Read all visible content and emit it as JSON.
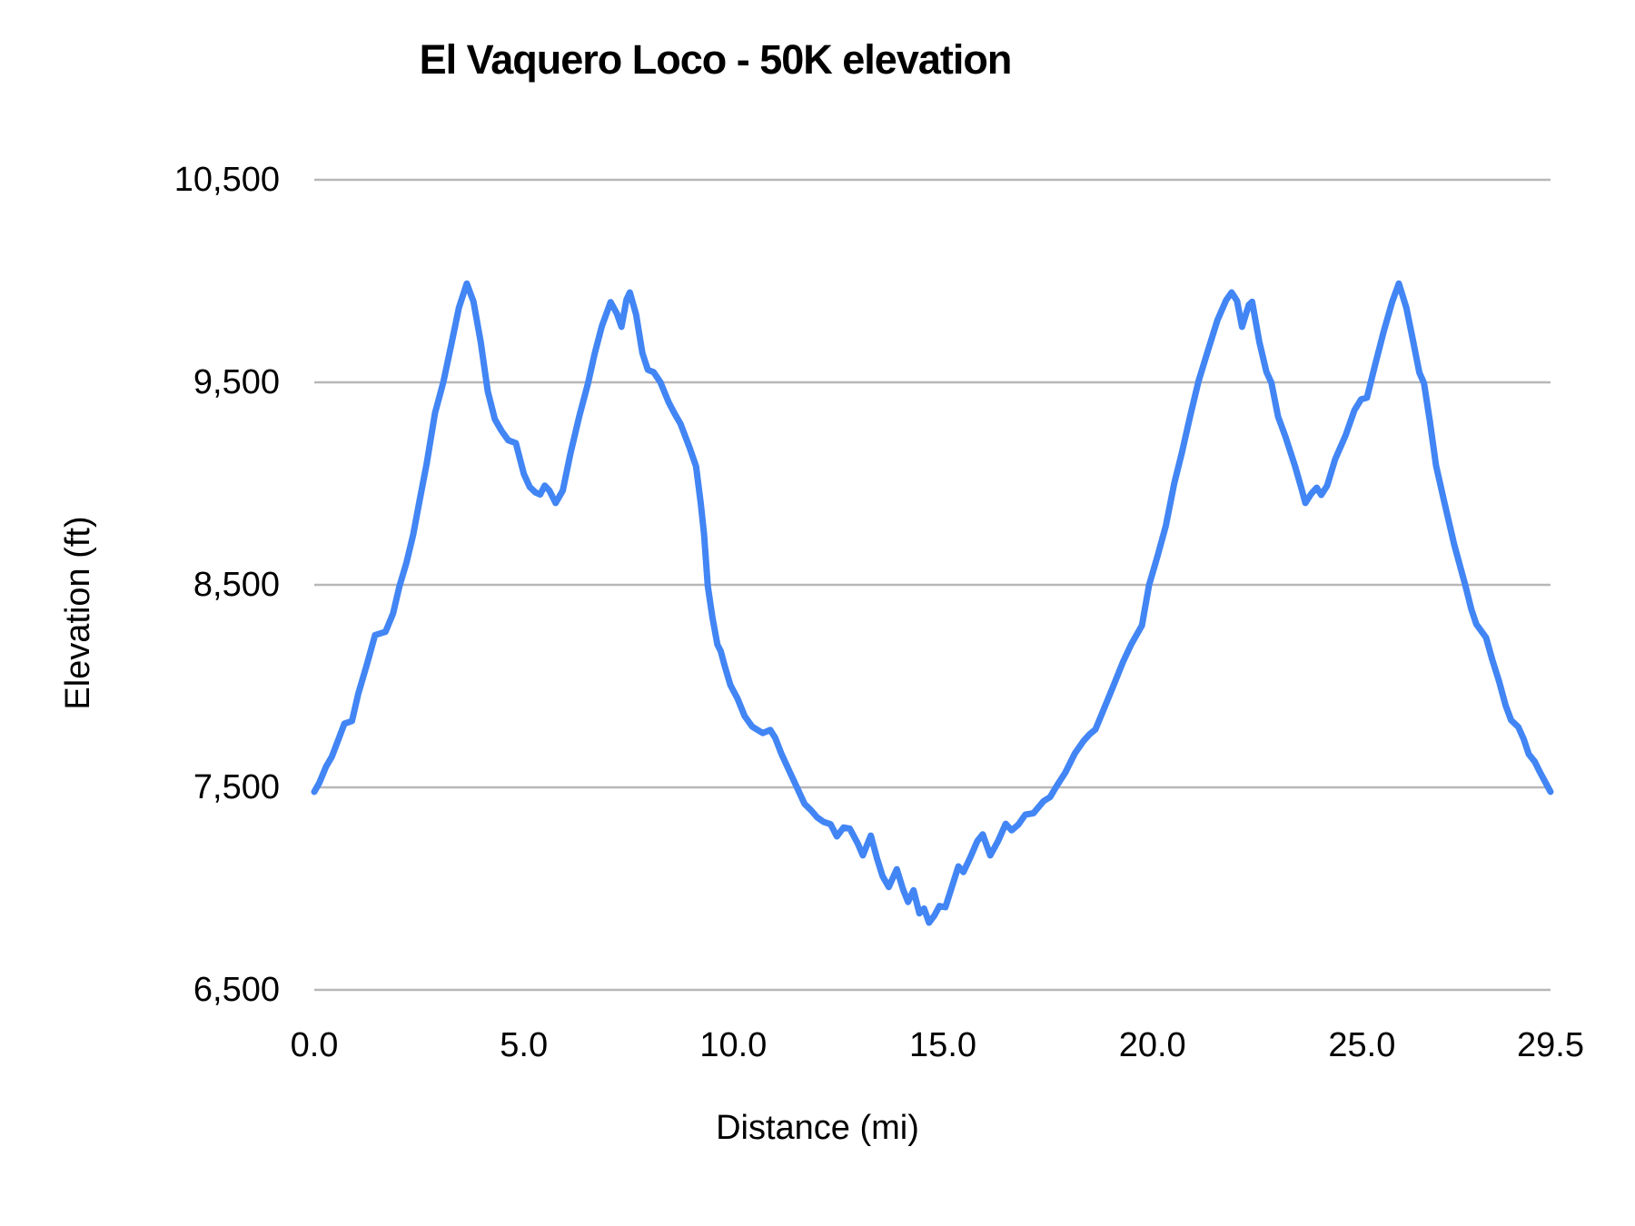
{
  "page": {
    "background": "#ffffff"
  },
  "chart_data": {
    "type": "line",
    "title": "El Vaquero Loco - 50K elevation",
    "xlabel": "Distance (mi)",
    "ylabel": "Elevation (ft)",
    "xlim": [
      0,
      29.5
    ],
    "ylim": [
      6500,
      10500
    ],
    "grid": "horizontal-only",
    "grid_color": "#b7b7b7",
    "legend": "none",
    "background": "#ffffff",
    "x_ticks": [
      {
        "v": 0,
        "label": "0.0"
      },
      {
        "v": 5,
        "label": "5.0"
      },
      {
        "v": 10,
        "label": "10.0"
      },
      {
        "v": 15,
        "label": "15.0"
      },
      {
        "v": 20,
        "label": "20.0"
      },
      {
        "v": 25,
        "label": "25.0"
      },
      {
        "v": 29.5,
        "label": "29.5"
      }
    ],
    "y_ticks": [
      {
        "v": 10500,
        "label": "10,500"
      },
      {
        "v": 9500,
        "label": "9,500"
      },
      {
        "v": 8500,
        "label": "8,500"
      },
      {
        "v": 7500,
        "label": "7,500"
      },
      {
        "v": 6500,
        "label": "6,500"
      }
    ],
    "series": [
      {
        "name": "elevation",
        "color": "#4285f4",
        "stroke_width": 7,
        "points": [
          [
            0.0,
            7478
          ],
          [
            0.12,
            7522
          ],
          [
            0.28,
            7602
          ],
          [
            0.42,
            7652
          ],
          [
            0.56,
            7728
          ],
          [
            0.72,
            7815
          ],
          [
            0.9,
            7828
          ],
          [
            1.05,
            7962
          ],
          [
            1.26,
            8110
          ],
          [
            1.45,
            8252
          ],
          [
            1.7,
            8268
          ],
          [
            1.88,
            8358
          ],
          [
            2.03,
            8492
          ],
          [
            2.2,
            8610
          ],
          [
            2.36,
            8748
          ],
          [
            2.52,
            8925
          ],
          [
            2.68,
            9095
          ],
          [
            2.88,
            9348
          ],
          [
            3.08,
            9502
          ],
          [
            3.27,
            9688
          ],
          [
            3.45,
            9868
          ],
          [
            3.64,
            9988
          ],
          [
            3.8,
            9898
          ],
          [
            3.97,
            9700
          ],
          [
            4.14,
            9455
          ],
          [
            4.31,
            9318
          ],
          [
            4.47,
            9260
          ],
          [
            4.63,
            9214
          ],
          [
            4.81,
            9200
          ],
          [
            5.0,
            9048
          ],
          [
            5.14,
            8984
          ],
          [
            5.28,
            8956
          ],
          [
            5.39,
            8946
          ],
          [
            5.5,
            8990
          ],
          [
            5.61,
            8966
          ],
          [
            5.76,
            8904
          ],
          [
            5.93,
            8966
          ],
          [
            6.11,
            9146
          ],
          [
            6.32,
            9330
          ],
          [
            6.53,
            9494
          ],
          [
            6.69,
            9640
          ],
          [
            6.86,
            9776
          ],
          [
            7.07,
            9896
          ],
          [
            7.22,
            9840
          ],
          [
            7.33,
            9774
          ],
          [
            7.45,
            9908
          ],
          [
            7.53,
            9944
          ],
          [
            7.68,
            9835
          ],
          [
            7.83,
            9645
          ],
          [
            7.96,
            9562
          ],
          [
            8.1,
            9550
          ],
          [
            8.26,
            9500
          ],
          [
            8.46,
            9400
          ],
          [
            8.6,
            9345
          ],
          [
            8.74,
            9295
          ],
          [
            8.96,
            9175
          ],
          [
            9.11,
            9085
          ],
          [
            9.22,
            8905
          ],
          [
            9.3,
            8750
          ],
          [
            9.39,
            8495
          ],
          [
            9.5,
            8340
          ],
          [
            9.62,
            8205
          ],
          [
            9.7,
            8172
          ],
          [
            9.8,
            8095
          ],
          [
            9.93,
            8005
          ],
          [
            10.1,
            7938
          ],
          [
            10.27,
            7852
          ],
          [
            10.45,
            7800
          ],
          [
            10.7,
            7768
          ],
          [
            10.88,
            7784
          ],
          [
            11.0,
            7744
          ],
          [
            11.15,
            7664
          ],
          [
            11.35,
            7575
          ],
          [
            11.52,
            7498
          ],
          [
            11.7,
            7418
          ],
          [
            11.85,
            7388
          ],
          [
            12.0,
            7352
          ],
          [
            12.15,
            7330
          ],
          [
            12.32,
            7318
          ],
          [
            12.47,
            7258
          ],
          [
            12.63,
            7302
          ],
          [
            12.78,
            7296
          ],
          [
            12.97,
            7222
          ],
          [
            13.09,
            7164
          ],
          [
            13.28,
            7262
          ],
          [
            13.43,
            7148
          ],
          [
            13.56,
            7062
          ],
          [
            13.71,
            7008
          ],
          [
            13.9,
            7096
          ],
          [
            14.05,
            6996
          ],
          [
            14.17,
            6934
          ],
          [
            14.3,
            6992
          ],
          [
            14.44,
            6878
          ],
          [
            14.55,
            6902
          ],
          [
            14.67,
            6832
          ],
          [
            14.8,
            6868
          ],
          [
            14.92,
            6914
          ],
          [
            15.06,
            6908
          ],
          [
            15.22,
            7012
          ],
          [
            15.37,
            7110
          ],
          [
            15.49,
            7082
          ],
          [
            15.65,
            7152
          ],
          [
            15.82,
            7234
          ],
          [
            15.95,
            7268
          ],
          [
            16.13,
            7164
          ],
          [
            16.32,
            7236
          ],
          [
            16.5,
            7320
          ],
          [
            16.64,
            7288
          ],
          [
            16.8,
            7316
          ],
          [
            16.97,
            7366
          ],
          [
            17.16,
            7372
          ],
          [
            17.4,
            7432
          ],
          [
            17.56,
            7452
          ],
          [
            17.7,
            7502
          ],
          [
            17.92,
            7572
          ],
          [
            18.15,
            7668
          ],
          [
            18.36,
            7730
          ],
          [
            18.5,
            7762
          ],
          [
            18.64,
            7786
          ],
          [
            18.86,
            7896
          ],
          [
            19.07,
            8002
          ],
          [
            19.3,
            8120
          ],
          [
            19.5,
            8208
          ],
          [
            19.75,
            8300
          ],
          [
            19.92,
            8498
          ],
          [
            20.12,
            8640
          ],
          [
            20.32,
            8792
          ],
          [
            20.52,
            9000
          ],
          [
            20.7,
            9150
          ],
          [
            20.9,
            9332
          ],
          [
            21.1,
            9506
          ],
          [
            21.31,
            9646
          ],
          [
            21.55,
            9806
          ],
          [
            21.76,
            9906
          ],
          [
            21.89,
            9944
          ],
          [
            22.02,
            9902
          ],
          [
            22.14,
            9774
          ],
          [
            22.3,
            9882
          ],
          [
            22.38,
            9898
          ],
          [
            22.55,
            9700
          ],
          [
            22.72,
            9552
          ],
          [
            22.84,
            9498
          ],
          [
            23.0,
            9330
          ],
          [
            23.17,
            9234
          ],
          [
            23.4,
            9088
          ],
          [
            23.56,
            8972
          ],
          [
            23.65,
            8904
          ],
          [
            23.79,
            8950
          ],
          [
            23.92,
            8980
          ],
          [
            24.03,
            8944
          ],
          [
            24.17,
            8990
          ],
          [
            24.36,
            9120
          ],
          [
            24.61,
            9238
          ],
          [
            24.82,
            9362
          ],
          [
            24.98,
            9416
          ],
          [
            25.12,
            9424
          ],
          [
            25.32,
            9592
          ],
          [
            25.52,
            9752
          ],
          [
            25.72,
            9896
          ],
          [
            25.88,
            9988
          ],
          [
            26.06,
            9868
          ],
          [
            26.22,
            9704
          ],
          [
            26.37,
            9548
          ],
          [
            26.48,
            9496
          ],
          [
            26.62,
            9310
          ],
          [
            26.77,
            9088
          ],
          [
            26.97,
            8904
          ],
          [
            27.2,
            8700
          ],
          [
            27.47,
            8496
          ],
          [
            27.61,
            8380
          ],
          [
            27.73,
            8306
          ],
          [
            27.96,
            8240
          ],
          [
            28.11,
            8130
          ],
          [
            28.27,
            8024
          ],
          [
            28.43,
            7904
          ],
          [
            28.56,
            7832
          ],
          [
            28.73,
            7798
          ],
          [
            28.86,
            7738
          ],
          [
            28.98,
            7664
          ],
          [
            29.12,
            7628
          ],
          [
            29.25,
            7574
          ],
          [
            29.37,
            7528
          ],
          [
            29.5,
            7478
          ]
        ]
      }
    ]
  }
}
